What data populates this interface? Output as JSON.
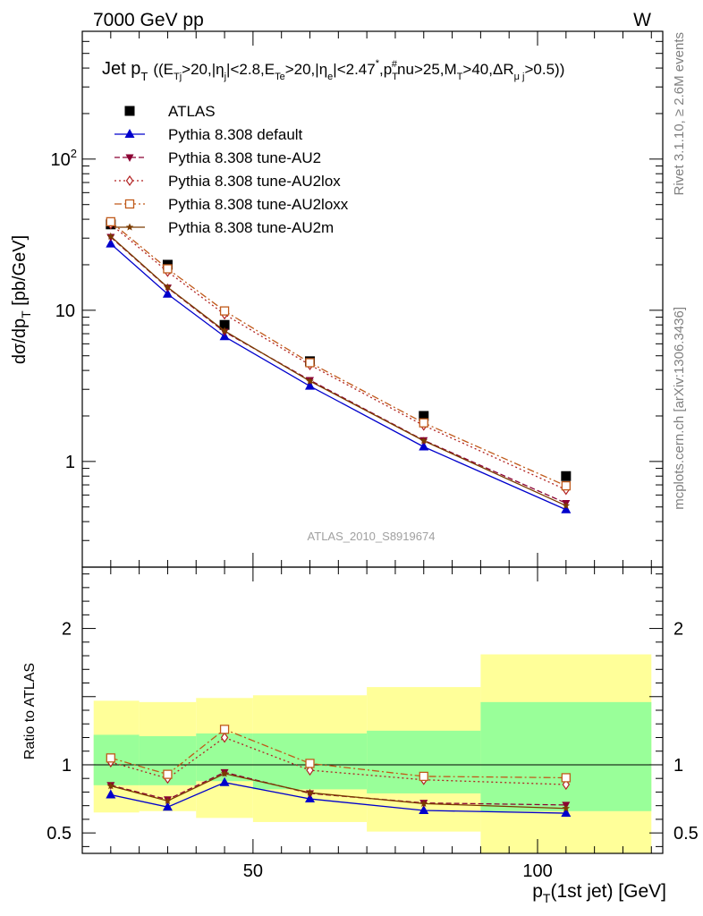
{
  "header": {
    "energy_label": "7000 GeV pp",
    "process_label": "W"
  },
  "side_labels": {
    "rivet": "Rivet 3.1.10, ≥ 2.6M events",
    "mcplots": "mcplots.cern.ch [arXiv:1306.3436]"
  },
  "analysis_id": "ATLAS_2010_S8919674",
  "chart_data": [
    {
      "type": "line",
      "panel": "main",
      "title": "Jet pT ((ETj>20,|ηj|<2.8,ETe>20,|ηe|<2.47*,pT#nu>25,MT>40,ΔRμj>0.5))",
      "ylabel": "dσ/dpT [pb/GeV]",
      "yscale": "log",
      "xlim": [
        20,
        122
      ],
      "ylim": [
        0.2,
        700
      ],
      "y_ticks": [
        1,
        10,
        100
      ],
      "y_tick_labels": [
        "1",
        "10",
        "10²"
      ],
      "legend_position": "top-left",
      "x": [
        25,
        35,
        45,
        60,
        80,
        105
      ],
      "series": [
        {
          "name": "ATLAS",
          "color": "#000000",
          "marker": "square-filled",
          "dash": "none",
          "values": [
            37,
            20,
            8,
            4.6,
            2.0,
            0.8
          ]
        },
        {
          "name": "Pythia 8.308 default",
          "color": "#0000cc",
          "marker": "triangle-up-filled",
          "dash": "solid",
          "values": [
            27.5,
            12.8,
            6.7,
            3.15,
            1.25,
            0.48
          ]
        },
        {
          "name": "Pythia 8.308 tune-AU2",
          "color": "#8b0033",
          "marker": "triangle-down-filled",
          "dash": "dashed",
          "values": [
            30.5,
            14.1,
            7.2,
            3.45,
            1.38,
            0.53
          ]
        },
        {
          "name": "Pythia 8.308 tune-AU2lox",
          "color": "#b22222",
          "marker": "diamond-open",
          "dash": "dotted",
          "values": [
            37.2,
            18,
            9.4,
            4.35,
            1.73,
            0.65
          ]
        },
        {
          "name": "Pythia 8.308 tune-AU2loxx",
          "color": "#c05a1a",
          "marker": "square-open",
          "dash": "dashdot",
          "values": [
            38.5,
            18.8,
            9.9,
            4.5,
            1.8,
            0.69
          ]
        },
        {
          "name": "Pythia 8.308 tune-AU2m",
          "color": "#7a3b00",
          "marker": "star",
          "dash": "solid",
          "values": [
            30.8,
            14.2,
            7.3,
            3.4,
            1.37,
            0.51
          ]
        }
      ]
    },
    {
      "type": "line",
      "panel": "ratio",
      "ylabel": "Ratio to ATLAS",
      "xlabel": "pT(1st jet) [GeV]",
      "xlim": [
        20,
        122
      ],
      "ylim": [
        0.35,
        2.45
      ],
      "x_ticks": [
        50,
        100
      ],
      "x_tick_labels": [
        "50",
        "100"
      ],
      "y_ticks": [
        0.5,
        1,
        2
      ],
      "y_tick_labels": [
        "0.5",
        "1",
        "2"
      ],
      "bands": [
        {
          "x0": 22,
          "x1": 30,
          "inner": [
            0.85,
            1.22
          ],
          "outer": [
            0.65,
            1.47
          ]
        },
        {
          "x0": 30,
          "x1": 40,
          "inner": [
            0.85,
            1.21
          ],
          "outer": [
            0.66,
            1.46
          ]
        },
        {
          "x0": 40,
          "x1": 50,
          "inner": [
            0.88,
            1.23
          ],
          "outer": [
            0.61,
            1.49
          ]
        },
        {
          "x0": 50,
          "x1": 70,
          "inner": [
            0.82,
            1.23
          ],
          "outer": [
            0.58,
            1.51
          ]
        },
        {
          "x0": 70,
          "x1": 90,
          "inner": [
            0.79,
            1.25
          ],
          "outer": [
            0.51,
            1.57
          ]
        },
        {
          "x0": 90,
          "x1": 120,
          "inner": [
            0.66,
            1.46
          ],
          "outer": [
            0.35,
            1.81
          ]
        }
      ],
      "x": [
        25,
        35,
        45,
        60,
        80,
        105
      ],
      "series": [
        {
          "name": "Pythia 8.308 default",
          "color": "#0000cc",
          "marker": "triangle-up-filled",
          "dash": "solid",
          "values": [
            0.78,
            0.69,
            0.87,
            0.75,
            0.665,
            0.645
          ]
        },
        {
          "name": "Pythia 8.308 tune-AU2",
          "color": "#8b0033",
          "marker": "triangle-down-filled",
          "dash": "dashed",
          "values": [
            0.85,
            0.745,
            0.945,
            0.79,
            0.72,
            0.705
          ]
        },
        {
          "name": "Pythia 8.308 tune-AU2lox",
          "color": "#b22222",
          "marker": "diamond-open",
          "dash": "dotted",
          "values": [
            1.02,
            0.9,
            1.2,
            0.96,
            0.89,
            0.855
          ]
        },
        {
          "name": "Pythia 8.308 tune-AU2loxx",
          "color": "#c05a1a",
          "marker": "square-open",
          "dash": "dashdot",
          "values": [
            1.05,
            0.93,
            1.26,
            1.01,
            0.915,
            0.905
          ]
        },
        {
          "name": "Pythia 8.308 tune-AU2m",
          "color": "#7a3b00",
          "marker": "star",
          "dash": "solid",
          "values": [
            0.845,
            0.735,
            0.935,
            0.795,
            0.715,
            0.68
          ]
        }
      ]
    }
  ]
}
